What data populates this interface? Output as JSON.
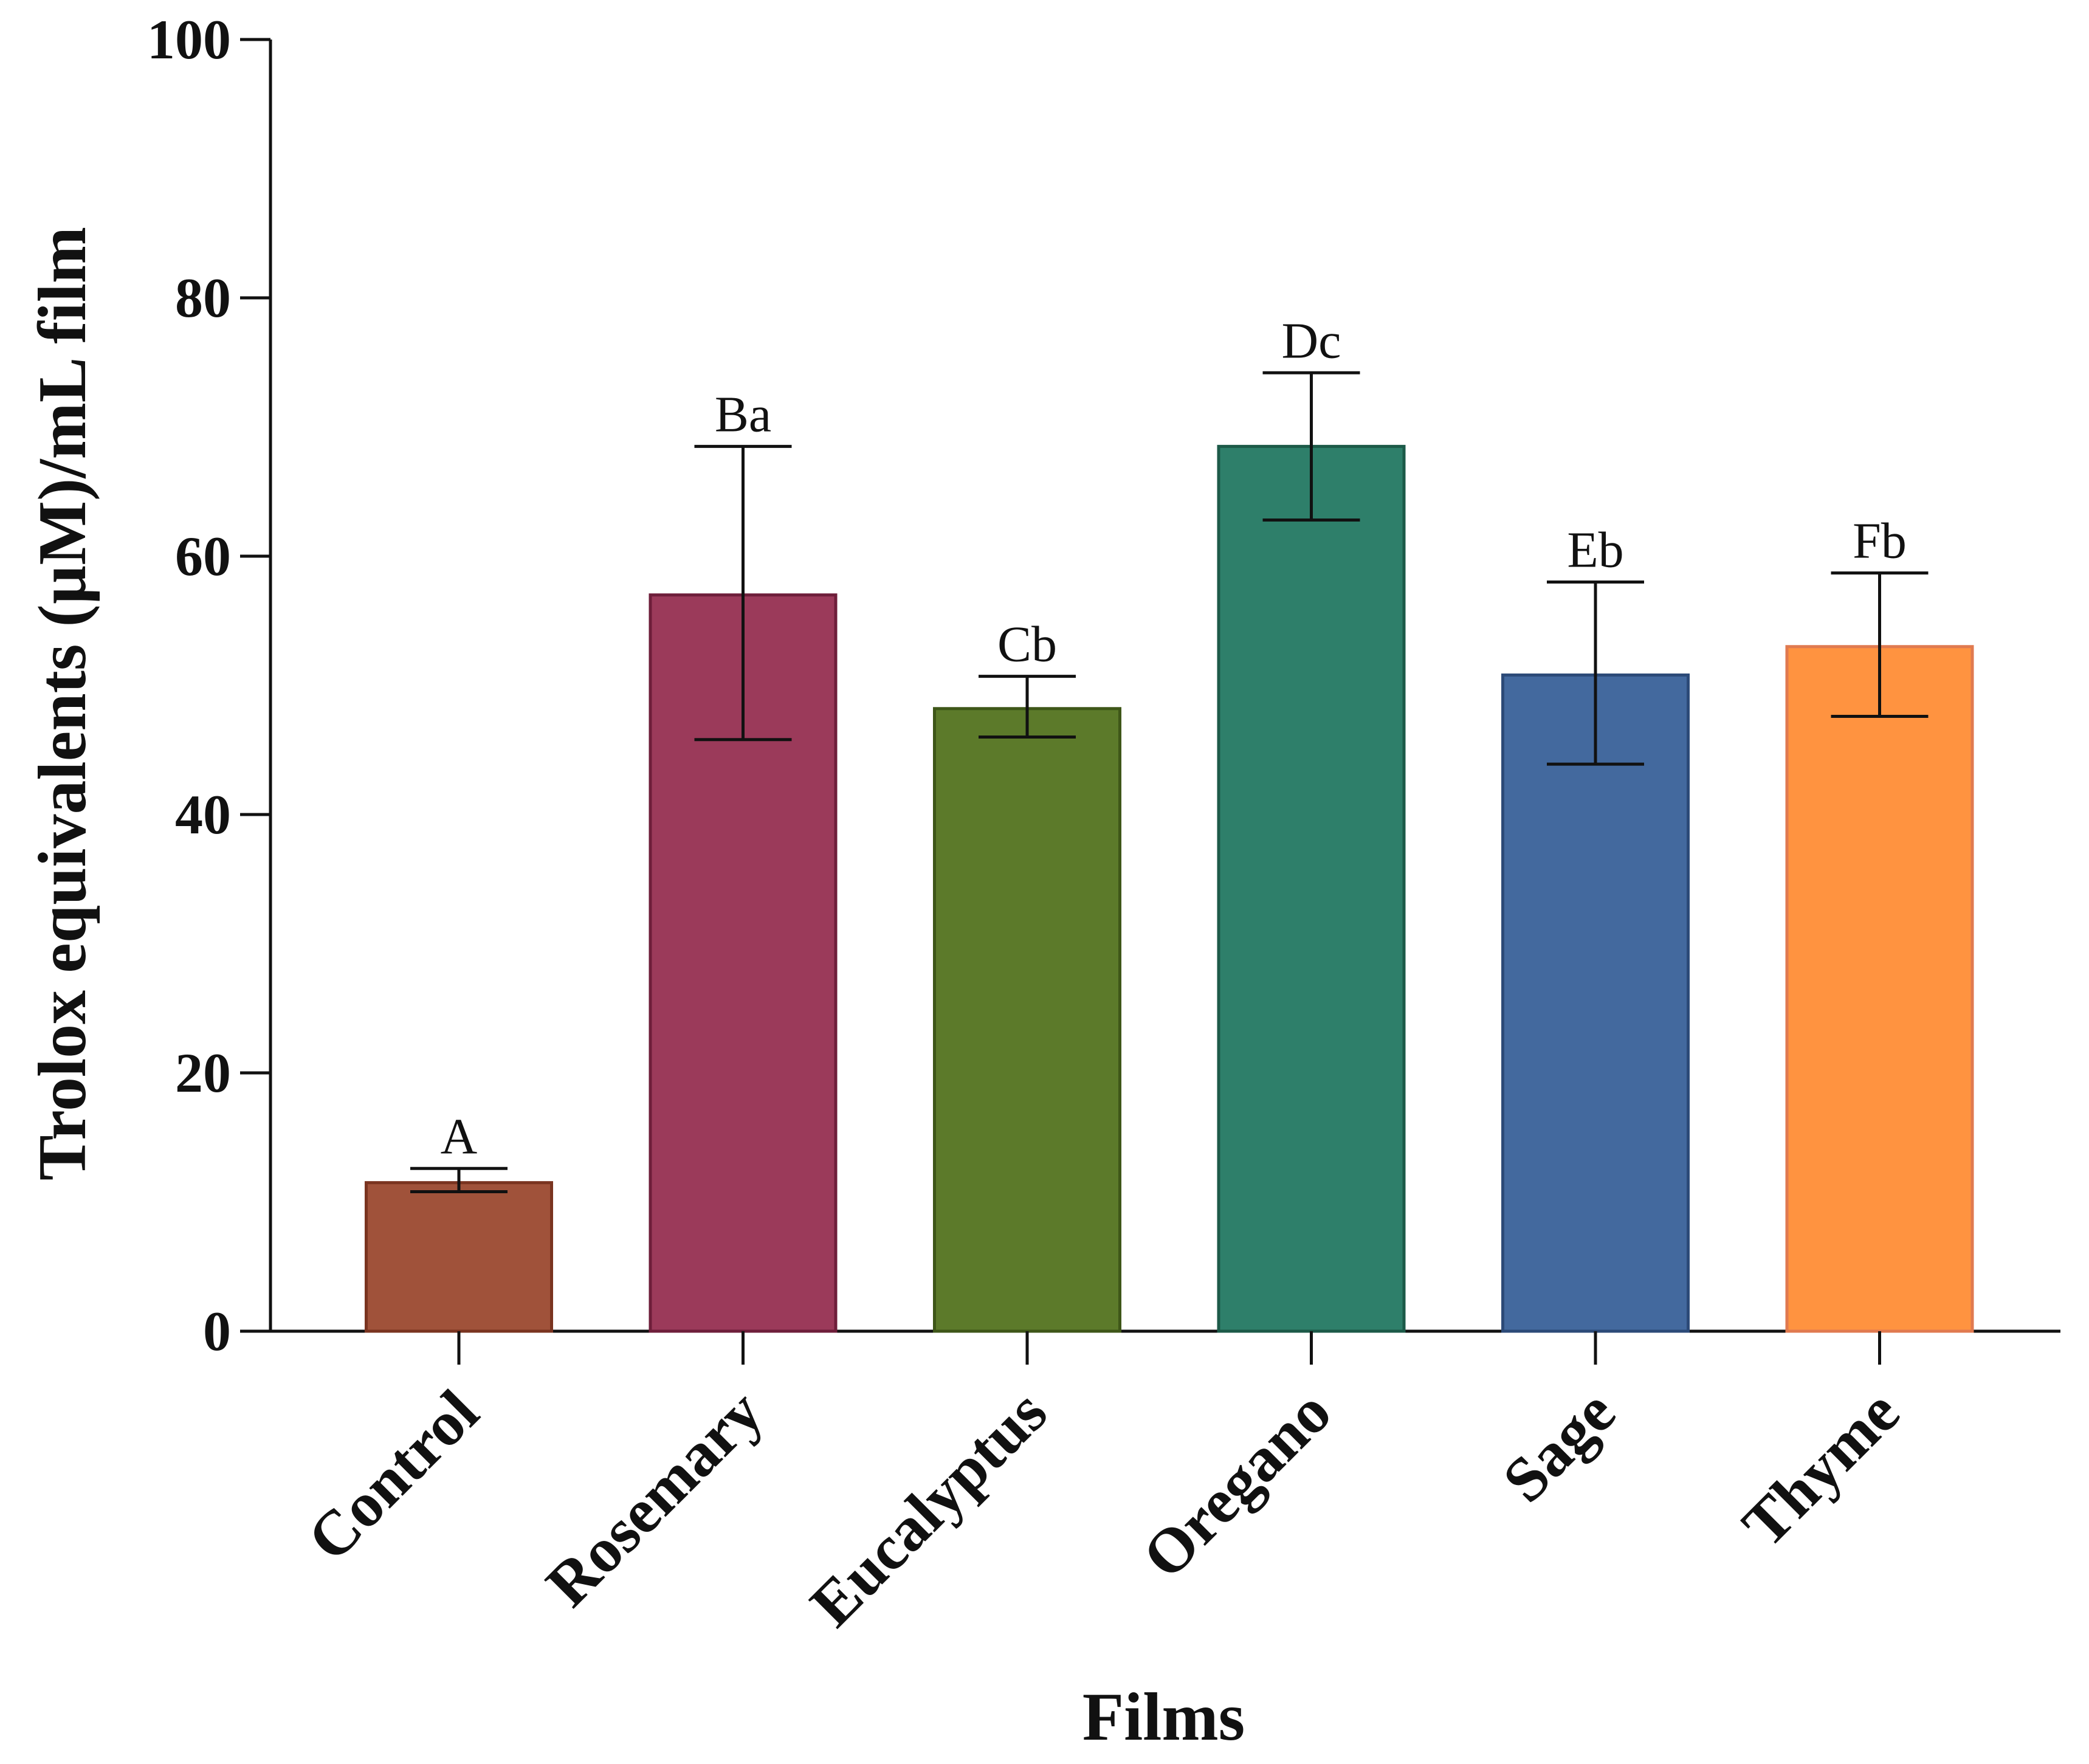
{
  "chart_data": {
    "type": "bar",
    "title": "",
    "xlabel": "Films",
    "ylabel": "Trolox equivalents (µM)/mL film",
    "ylim": [
      0,
      100
    ],
    "yticks": [
      0,
      20,
      40,
      60,
      80,
      100
    ],
    "grid": false,
    "categories": [
      "Control",
      "Rosemary",
      "Eucalyptus",
      "Oregano",
      "Sage",
      "Thyme"
    ],
    "values": [
      11.5,
      57,
      48.2,
      68.5,
      50.8,
      53
    ],
    "error_low": [
      10.8,
      45.8,
      46,
      62.8,
      43.9,
      47.6
    ],
    "error_high": [
      12.6,
      68.5,
      50.7,
      74.2,
      58,
      58.7
    ],
    "annotations": [
      "A",
      "Ba",
      "Cb",
      "Dc",
      "Eb",
      "Fb"
    ],
    "colors": [
      "#A0523A",
      "#9B3A5A",
      "#5C7A2A",
      "#2E7F6A",
      "#43699E",
      "#FF9340"
    ],
    "edge_colors": [
      "#7A3420",
      "#6E1E3A",
      "#3E5618",
      "#1C5A48",
      "#2C4A78",
      "#E07A50"
    ]
  }
}
